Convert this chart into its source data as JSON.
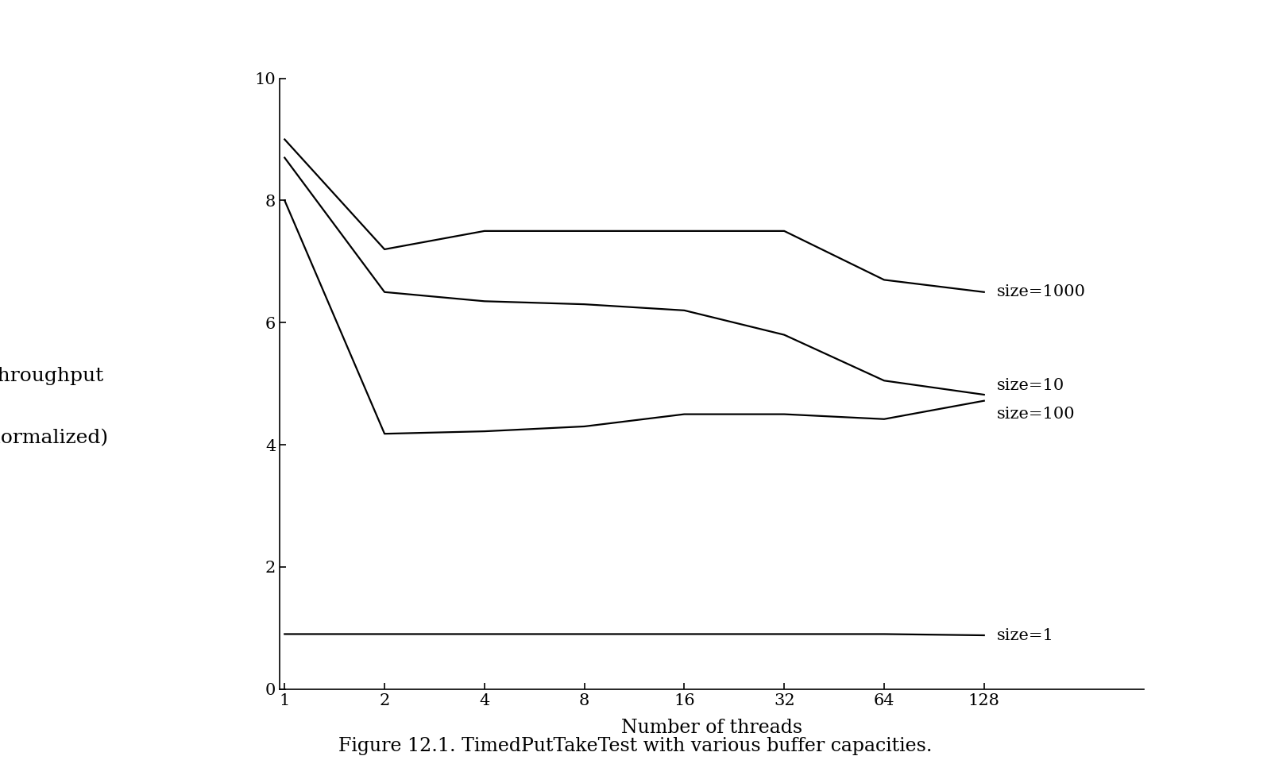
{
  "x_values": [
    1,
    2,
    4,
    8,
    16,
    32,
    64,
    128
  ],
  "series_order": [
    "size=1000",
    "size=10",
    "size=100",
    "size=1"
  ],
  "series": {
    "size=1000": [
      9.0,
      7.2,
      7.5,
      7.5,
      7.5,
      7.5,
      6.7,
      6.5
    ],
    "size=10": [
      8.7,
      6.5,
      6.35,
      6.3,
      6.2,
      5.8,
      5.05,
      4.82
    ],
    "size=100": [
      8.0,
      4.18,
      4.22,
      4.3,
      4.5,
      4.5,
      4.42,
      4.72
    ],
    "size=1": [
      0.9,
      0.9,
      0.9,
      0.9,
      0.9,
      0.9,
      0.9,
      0.88
    ]
  },
  "label_y_offsets": {
    "size=1000": 0.0,
    "size=10": 0.15,
    "size=100": -0.22,
    "size=1": 0.0
  },
  "line_color": "#000000",
  "line_width": 1.6,
  "background_color": "#ffffff",
  "ylabel_line1": "Throughput",
  "ylabel_line2": "(normalized)",
  "xlabel": "Number of threads",
  "ylim": [
    0,
    10
  ],
  "yticks": [
    0,
    2,
    4,
    6,
    8,
    10
  ],
  "xtick_labels": [
    "1",
    "2",
    "4",
    "8",
    "16",
    "32",
    "64",
    "128"
  ],
  "caption_prefix": "Figure 12.1.",
  "caption_code": " TimedPutTakeTest",
  "caption_suffix": " with various buffer capacities.",
  "label_fontsize": 15,
  "tick_fontsize": 15,
  "ylabel_fontsize": 18,
  "xlabel_fontsize": 17,
  "caption_fontsize": 17
}
